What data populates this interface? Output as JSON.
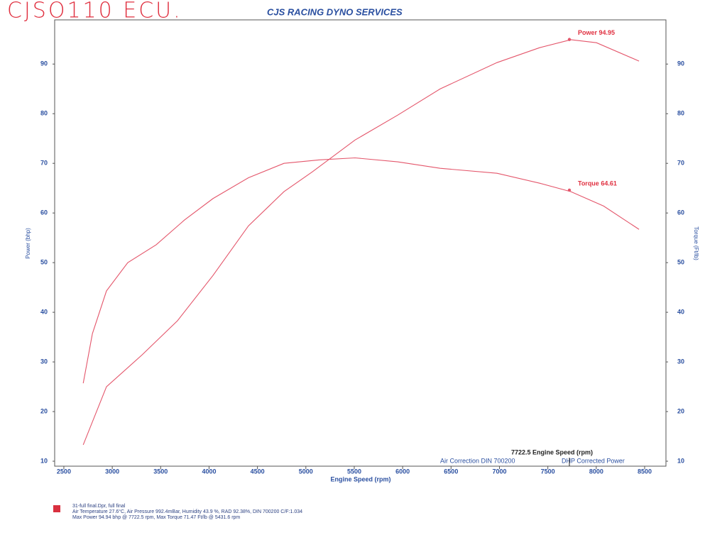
{
  "chart_data": {
    "type": "line",
    "handwriting": "CJSO110 ECU.",
    "title": "CJS RACING DYNO SERVICES",
    "xlabel": "Engine Speed (rpm)",
    "ylabel": "Power (bhp)",
    "y2label": "Torque (Ft/lb)",
    "xlim": [
      2405,
      8720
    ],
    "xticks": [
      2500,
      3000,
      3500,
      4000,
      4500,
      5000,
      5500,
      6000,
      6500,
      7000,
      7500,
      8000,
      8500
    ],
    "ylim": [
      9,
      98.9
    ],
    "yticks": [
      10,
      20,
      30,
      40,
      50,
      60,
      70,
      80,
      90
    ],
    "y2lim": [
      9,
      98.9
    ],
    "y2ticks": [
      10,
      20,
      30,
      40,
      50,
      60,
      70,
      80,
      90
    ],
    "series": [
      {
        "name": "Power",
        "color": "#e4566b",
        "x": [
          2700,
          2940,
          3307,
          3674,
          4040,
          4407,
          4774,
          5068,
          5508,
          5948,
          6388,
          6975,
          7415,
          7738,
          8002,
          8442
        ],
        "values": [
          13.3,
          25,
          31.4,
          38.3,
          47.4,
          57.4,
          64.3,
          68.3,
          74.7,
          79.7,
          85,
          90.3,
          93.3,
          94.9,
          94.3,
          90.6
        ]
      },
      {
        "name": "Torque",
        "color": "#e4566b",
        "axis": "y2",
        "x": [
          2700,
          2795,
          2940,
          3160,
          3454,
          3747,
          4040,
          4407,
          4774,
          5141,
          5508,
          5948,
          6388,
          6975,
          7415,
          7738,
          8076,
          8442
        ],
        "values": [
          25.7,
          35.7,
          44.3,
          50,
          53.6,
          58.6,
          62.9,
          67.1,
          70,
          70.7,
          71.1,
          70.3,
          69,
          68,
          66,
          64.3,
          61.4,
          56.7
        ]
      }
    ],
    "annotations": [
      {
        "text": "Power 94.95",
        "x": 7722.5,
        "y": 94.95
      },
      {
        "text": "Torque 64.61",
        "x": 7722.5,
        "y": 64.61
      }
    ],
    "cursor": {
      "x": 7722.5,
      "label": "7722.5 Engine Speed (rpm)"
    },
    "status": [
      "Air Correction DIN 700200",
      "DHP Corrected Power"
    ],
    "legend_color": "#d9303f",
    "footer": [
      "31-full final.Dpr,   full final",
      "Air Temperature 27.6°C, Air Pressure 992.4mBar, Humidity 43.9 %, RAD 92.38%,   DIN 700200  C/F:1.034",
      "Max Power 94.94 bhp @ 7722.5 rpm, Max Torque 71.47 Ft/lb @ 5431.6 rpm"
    ]
  }
}
